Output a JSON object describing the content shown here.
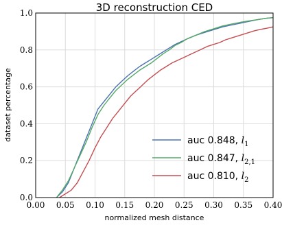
{
  "chart_data": {
    "type": "line",
    "title": "3D reconstruction CED",
    "xlabel": "normalized mesh distance",
    "ylabel": "dataset percentage",
    "xlim": [
      0.0,
      0.4
    ],
    "ylim": [
      0.0,
      1.0
    ],
    "grid": true,
    "legend_position": "lower-right",
    "xticks": [
      "0.00",
      "0.05",
      "0.10",
      "0.15",
      "0.20",
      "0.25",
      "0.30",
      "0.35",
      "0.40"
    ],
    "yticks": [
      "0.0",
      "0.2",
      "0.4",
      "0.6",
      "0.8",
      "1.0"
    ],
    "series": [
      {
        "name": "auc 0.848, l1",
        "legend_text": "auc 0.848, ",
        "legend_math": "l",
        "legend_sub": "1",
        "color": "#4c72b0",
        "x": [
          0.035,
          0.045,
          0.055,
          0.065,
          0.075,
          0.085,
          0.095,
          0.105,
          0.115,
          0.125,
          0.135,
          0.145,
          0.155,
          0.165,
          0.175,
          0.185,
          0.195,
          0.205,
          0.215,
          0.225,
          0.235,
          0.245,
          0.255,
          0.27,
          0.285,
          0.3,
          0.315,
          0.33,
          0.345,
          0.36,
          0.375,
          0.39,
          0.4
        ],
        "y": [
          0.0,
          0.03,
          0.08,
          0.16,
          0.24,
          0.32,
          0.4,
          0.48,
          0.52,
          0.56,
          0.6,
          0.63,
          0.66,
          0.685,
          0.71,
          0.73,
          0.75,
          0.77,
          0.79,
          0.81,
          0.83,
          0.845,
          0.86,
          0.88,
          0.895,
          0.91,
          0.925,
          0.935,
          0.945,
          0.955,
          0.965,
          0.972,
          0.975
        ]
      },
      {
        "name": "auc 0.847, l2,1",
        "legend_text": "auc 0.847, ",
        "legend_math": "l",
        "legend_sub": "2,1",
        "color": "#55a868",
        "x": [
          0.035,
          0.045,
          0.055,
          0.065,
          0.075,
          0.085,
          0.095,
          0.105,
          0.115,
          0.125,
          0.135,
          0.145,
          0.155,
          0.165,
          0.175,
          0.185,
          0.195,
          0.205,
          0.215,
          0.225,
          0.235,
          0.245,
          0.255,
          0.27,
          0.285,
          0.3,
          0.315,
          0.33,
          0.345,
          0.36,
          0.375,
          0.39,
          0.4
        ],
        "y": [
          0.0,
          0.04,
          0.09,
          0.16,
          0.23,
          0.3,
          0.38,
          0.45,
          0.5,
          0.54,
          0.58,
          0.61,
          0.64,
          0.665,
          0.69,
          0.71,
          0.73,
          0.755,
          0.78,
          0.8,
          0.825,
          0.84,
          0.86,
          0.88,
          0.9,
          0.915,
          0.93,
          0.94,
          0.95,
          0.958,
          0.965,
          0.972,
          0.975
        ]
      },
      {
        "name": "auc 0.810, l2",
        "legend_text": "auc 0.810, ",
        "legend_math": "l",
        "legend_sub": "2",
        "color": "#c44e52",
        "x": [
          0.04,
          0.05,
          0.06,
          0.07,
          0.08,
          0.09,
          0.1,
          0.11,
          0.12,
          0.13,
          0.14,
          0.15,
          0.16,
          0.17,
          0.18,
          0.19,
          0.2,
          0.21,
          0.22,
          0.23,
          0.24,
          0.25,
          0.26,
          0.27,
          0.28,
          0.29,
          0.3,
          0.31,
          0.32,
          0.33,
          0.34,
          0.35,
          0.36,
          0.37,
          0.38,
          0.39,
          0.4
        ],
        "y": [
          0.0,
          0.02,
          0.04,
          0.08,
          0.14,
          0.2,
          0.27,
          0.33,
          0.38,
          0.43,
          0.47,
          0.51,
          0.55,
          0.58,
          0.61,
          0.64,
          0.665,
          0.69,
          0.71,
          0.73,
          0.745,
          0.76,
          0.775,
          0.79,
          0.805,
          0.82,
          0.83,
          0.84,
          0.855,
          0.865,
          0.875,
          0.885,
          0.895,
          0.905,
          0.912,
          0.918,
          0.925
        ]
      }
    ]
  }
}
